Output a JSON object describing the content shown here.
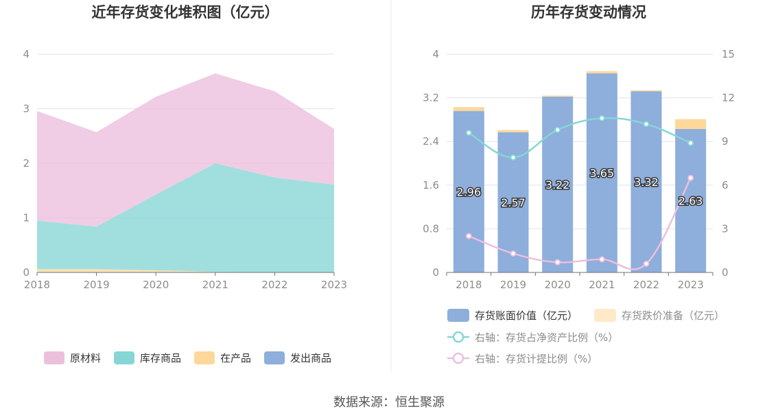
{
  "chart_data": [
    {
      "type": "area",
      "title": "近年存货变化堆积图（亿元）",
      "categories": [
        "2018",
        "2019",
        "2020",
        "2021",
        "2022",
        "2023"
      ],
      "stacked": true,
      "ylim": [
        0,
        4
      ],
      "yticks": [
        "0",
        "1",
        "2",
        "3",
        "4"
      ],
      "grid": true,
      "legend_position": "bottom",
      "series": [
        {
          "name": "发出商品",
          "color": "#8eaedb",
          "values": [
            0,
            0,
            0,
            0,
            0,
            0
          ]
        },
        {
          "name": "在产品",
          "color": "#fdd89a",
          "values": [
            0.06,
            0.06,
            0.04,
            0.01,
            0.0,
            0.0
          ]
        },
        {
          "name": "库存商品",
          "color": "#86d6d6",
          "values": [
            0.89,
            0.78,
            1.39,
            1.99,
            1.74,
            1.61
          ]
        },
        {
          "name": "原材料",
          "color": "#ecbfdd",
          "values": [
            2.01,
            1.73,
            1.79,
            1.65,
            1.58,
            1.02
          ]
        }
      ],
      "legend_order": [
        "原材料",
        "库存商品",
        "在产品",
        "发出商品"
      ]
    },
    {
      "type": "bar",
      "title": "历年存货变动情况",
      "categories": [
        "2018",
        "2019",
        "2020",
        "2021",
        "2022",
        "2023"
      ],
      "ylim_left": [
        0,
        4
      ],
      "yticks_left": [
        "0",
        "0.8",
        "1.6",
        "2.4",
        "3.2",
        "4"
      ],
      "ylim_right": [
        0,
        15
      ],
      "yticks_right": [
        "0",
        "3",
        "6",
        "9",
        "12",
        "15"
      ],
      "grid": true,
      "legend_position": "bottom",
      "series": [
        {
          "name": "存货账面价值（亿元）",
          "kind": "bar",
          "axis": "left",
          "color": "#8eaedb",
          "values": [
            2.96,
            2.57,
            3.22,
            3.65,
            3.32,
            2.63
          ],
          "labels": [
            "2.96",
            "2.57",
            "3.22",
            "3.65",
            "3.32",
            "2.63"
          ]
        },
        {
          "name": "存货跌价准备（亿元）",
          "kind": "bar",
          "axis": "left",
          "color": "#fdd89a",
          "values": [
            0.07,
            0.04,
            0.02,
            0.04,
            0.02,
            0.18
          ]
        },
        {
          "name": "右轴：存货占净资产比例（%）",
          "kind": "line",
          "axis": "right",
          "color": "#86d6d6",
          "values": [
            9.6,
            7.9,
            9.8,
            10.6,
            10.2,
            8.9
          ]
        },
        {
          "name": "右轴：存货计提比例（%）",
          "kind": "line",
          "axis": "right",
          "color": "#ecbfdd",
          "values": [
            2.5,
            1.3,
            0.7,
            0.9,
            0.6,
            6.5
          ]
        }
      ]
    }
  ],
  "footer": {
    "source": "数据来源：恒生聚源"
  }
}
